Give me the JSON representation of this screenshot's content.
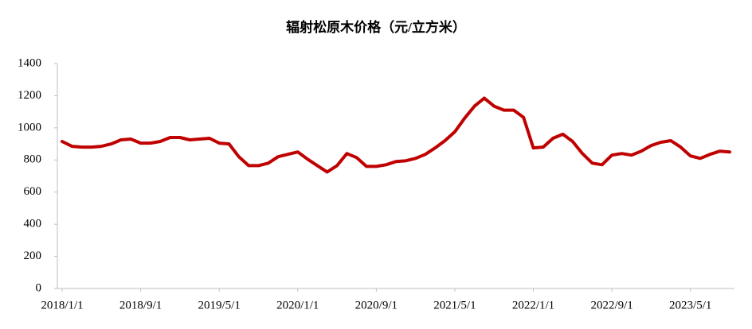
{
  "chart_data": {
    "type": "line",
    "title": "辐射松原木价格（元/立方米）",
    "categories": [
      "2018/1/1",
      null,
      null,
      null,
      null,
      null,
      null,
      null,
      "2018/9/1",
      null,
      null,
      null,
      null,
      null,
      null,
      null,
      "2019/5/1",
      null,
      null,
      null,
      null,
      null,
      null,
      null,
      "2020/1/1",
      null,
      null,
      null,
      null,
      null,
      null,
      null,
      "2020/9/1",
      null,
      null,
      null,
      null,
      null,
      null,
      null,
      "2021/5/1",
      null,
      null,
      null,
      null,
      null,
      null,
      null,
      "2022/1/1",
      null,
      null,
      null,
      null,
      null,
      null,
      null,
      "2022/9/1",
      null,
      null,
      null,
      null,
      null,
      null,
      null,
      "2023/5/1",
      null,
      null,
      null,
      null
    ],
    "series": [
      {
        "color": "#c00000",
        "values": [
          915,
          885,
          880,
          880,
          885,
          900,
          925,
          930,
          905,
          905,
          915,
          940,
          940,
          925,
          930,
          935,
          905,
          900,
          820,
          765,
          765,
          780,
          820,
          835,
          850,
          805,
          765,
          725,
          765,
          840,
          815,
          760,
          760,
          770,
          790,
          795,
          810,
          835,
          875,
          920,
          975,
          1060,
          1135,
          1185,
          1135,
          1110,
          1110,
          1065,
          875,
          880,
          935,
          960,
          915,
          840,
          780,
          770,
          830,
          840,
          830,
          855,
          890,
          910,
          920,
          880,
          825,
          810,
          835,
          855,
          850
        ]
      }
    ],
    "ylim": [
      0,
      1400
    ],
    "yticks": [
      0,
      200,
      400,
      600,
      800,
      1000,
      1200,
      1400
    ],
    "grid": false
  }
}
